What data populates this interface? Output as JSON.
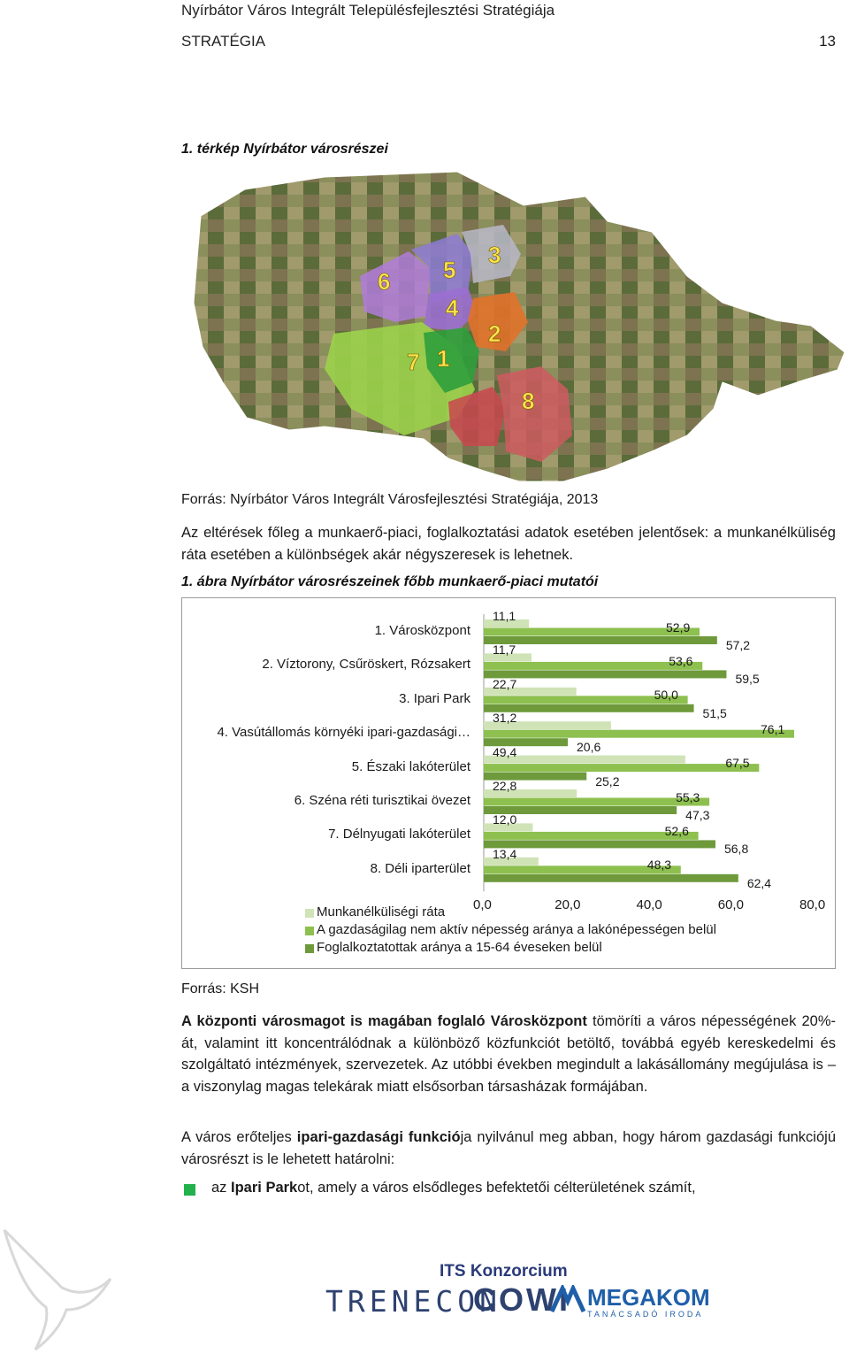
{
  "header": {
    "title": "Nyírbátor Város Integrált Településfejlesztési Stratégiája",
    "section": "STRATÉGIA",
    "page_number": "13"
  },
  "map": {
    "caption": "1. térkép Nyírbátor városrészei",
    "district_numbers": [
      "1",
      "2",
      "3",
      "4",
      "5",
      "6",
      "7",
      "8"
    ],
    "source": "Forrás: Nyírbátor Város Integrált Városfejlesztési Stratégiája, 2013"
  },
  "intro_paragraph": "Az eltérések főleg a munkaerő-piaci, foglalkoztatási adatok esetében jelentősek: a munkanélküliség ráta esetében a különbségek akár négyszeresek is lehetnek.",
  "chart_caption": "1. ábra Nyírbátor városrészeinek főbb munkaerő-piaci mutatói",
  "chart_data": {
    "type": "bar",
    "orientation": "horizontal",
    "categories": [
      "1. Városközpont",
      "2. Víztorony, Csűröskert, Rózsakert",
      "3. Ipari Park",
      "4. Vasútállomás környéki ipari-gazdasági…",
      "5. Északi lakóterület",
      "6. Széna réti turisztikai övezet",
      "7. Délnyugati lakóterület",
      "8. Déli iparterület"
    ],
    "series": [
      {
        "name": "Munkanélküliségi ráta",
        "color": "#cfe3b6",
        "values": [
          11.1,
          11.7,
          22.7,
          31.2,
          49.4,
          22.8,
          12.0,
          13.4
        ],
        "labels": [
          "11,1",
          "11,7",
          "22,7",
          "31,2",
          "49,4",
          "22,8",
          "12,0",
          "13,4"
        ]
      },
      {
        "name": "A gazdaságilag nem aktív népesség aránya a lakónépességen belül",
        "color": "#8dc04f",
        "values": [
          52.9,
          53.6,
          50.0,
          76.1,
          67.5,
          55.3,
          52.6,
          48.3
        ],
        "labels": [
          "52,9",
          "53,6",
          "50,0",
          "76,1",
          "67,5",
          "55,3",
          "52,6",
          "48,3"
        ]
      },
      {
        "name": "Foglalkoztatottak aránya a 15-64 éveseken belül",
        "color": "#6e9a3c",
        "values": [
          57.2,
          59.5,
          51.5,
          20.6,
          25.2,
          47.3,
          56.8,
          62.4
        ],
        "labels": [
          "57,2",
          "59,5",
          "51,5",
          "20,6",
          "25,2",
          "47,3",
          "56,8",
          "62,4"
        ]
      }
    ],
    "xlim": [
      0,
      80
    ],
    "x_ticks": [
      "0,0",
      "20,0",
      "40,0",
      "60,0",
      "80,0"
    ],
    "legend_position": "bottom",
    "grid": false
  },
  "chart_source": "Forrás: KSH",
  "paragraph2": {
    "bold_lead": "A központi városmagot is magában foglaló Városközpont",
    "rest": " tömöríti a város népességének 20%-át, valamint itt koncentrálódnak a különböző közfunkciót betöltő, továbbá egyéb kereskedelmi és szolgáltató intézmények, szervezetek. Az utóbbi években megindult a lakásállomány megújulása is – a viszonylag magas telekárak miatt elsősorban társasházak formájában."
  },
  "paragraph3": {
    "part1": "A város erőteljes ",
    "bold": "ipari-gazdasági funkció",
    "part2": "ja nyilvánul meg abban, hogy három gazdasági funkciójú városrészt is le lehetett határolni:"
  },
  "bullet1": {
    "part1": "az ",
    "bold": "Ipari Park",
    "part2": "ot, amely a város elsődleges befektetői célterületének számít,"
  },
  "footer": {
    "consortium": "ITS Konzorcium",
    "logos": [
      "TRENECON",
      "COWI",
      "MEGAKOM",
      "TANÁCSADÓ IRODA"
    ]
  }
}
